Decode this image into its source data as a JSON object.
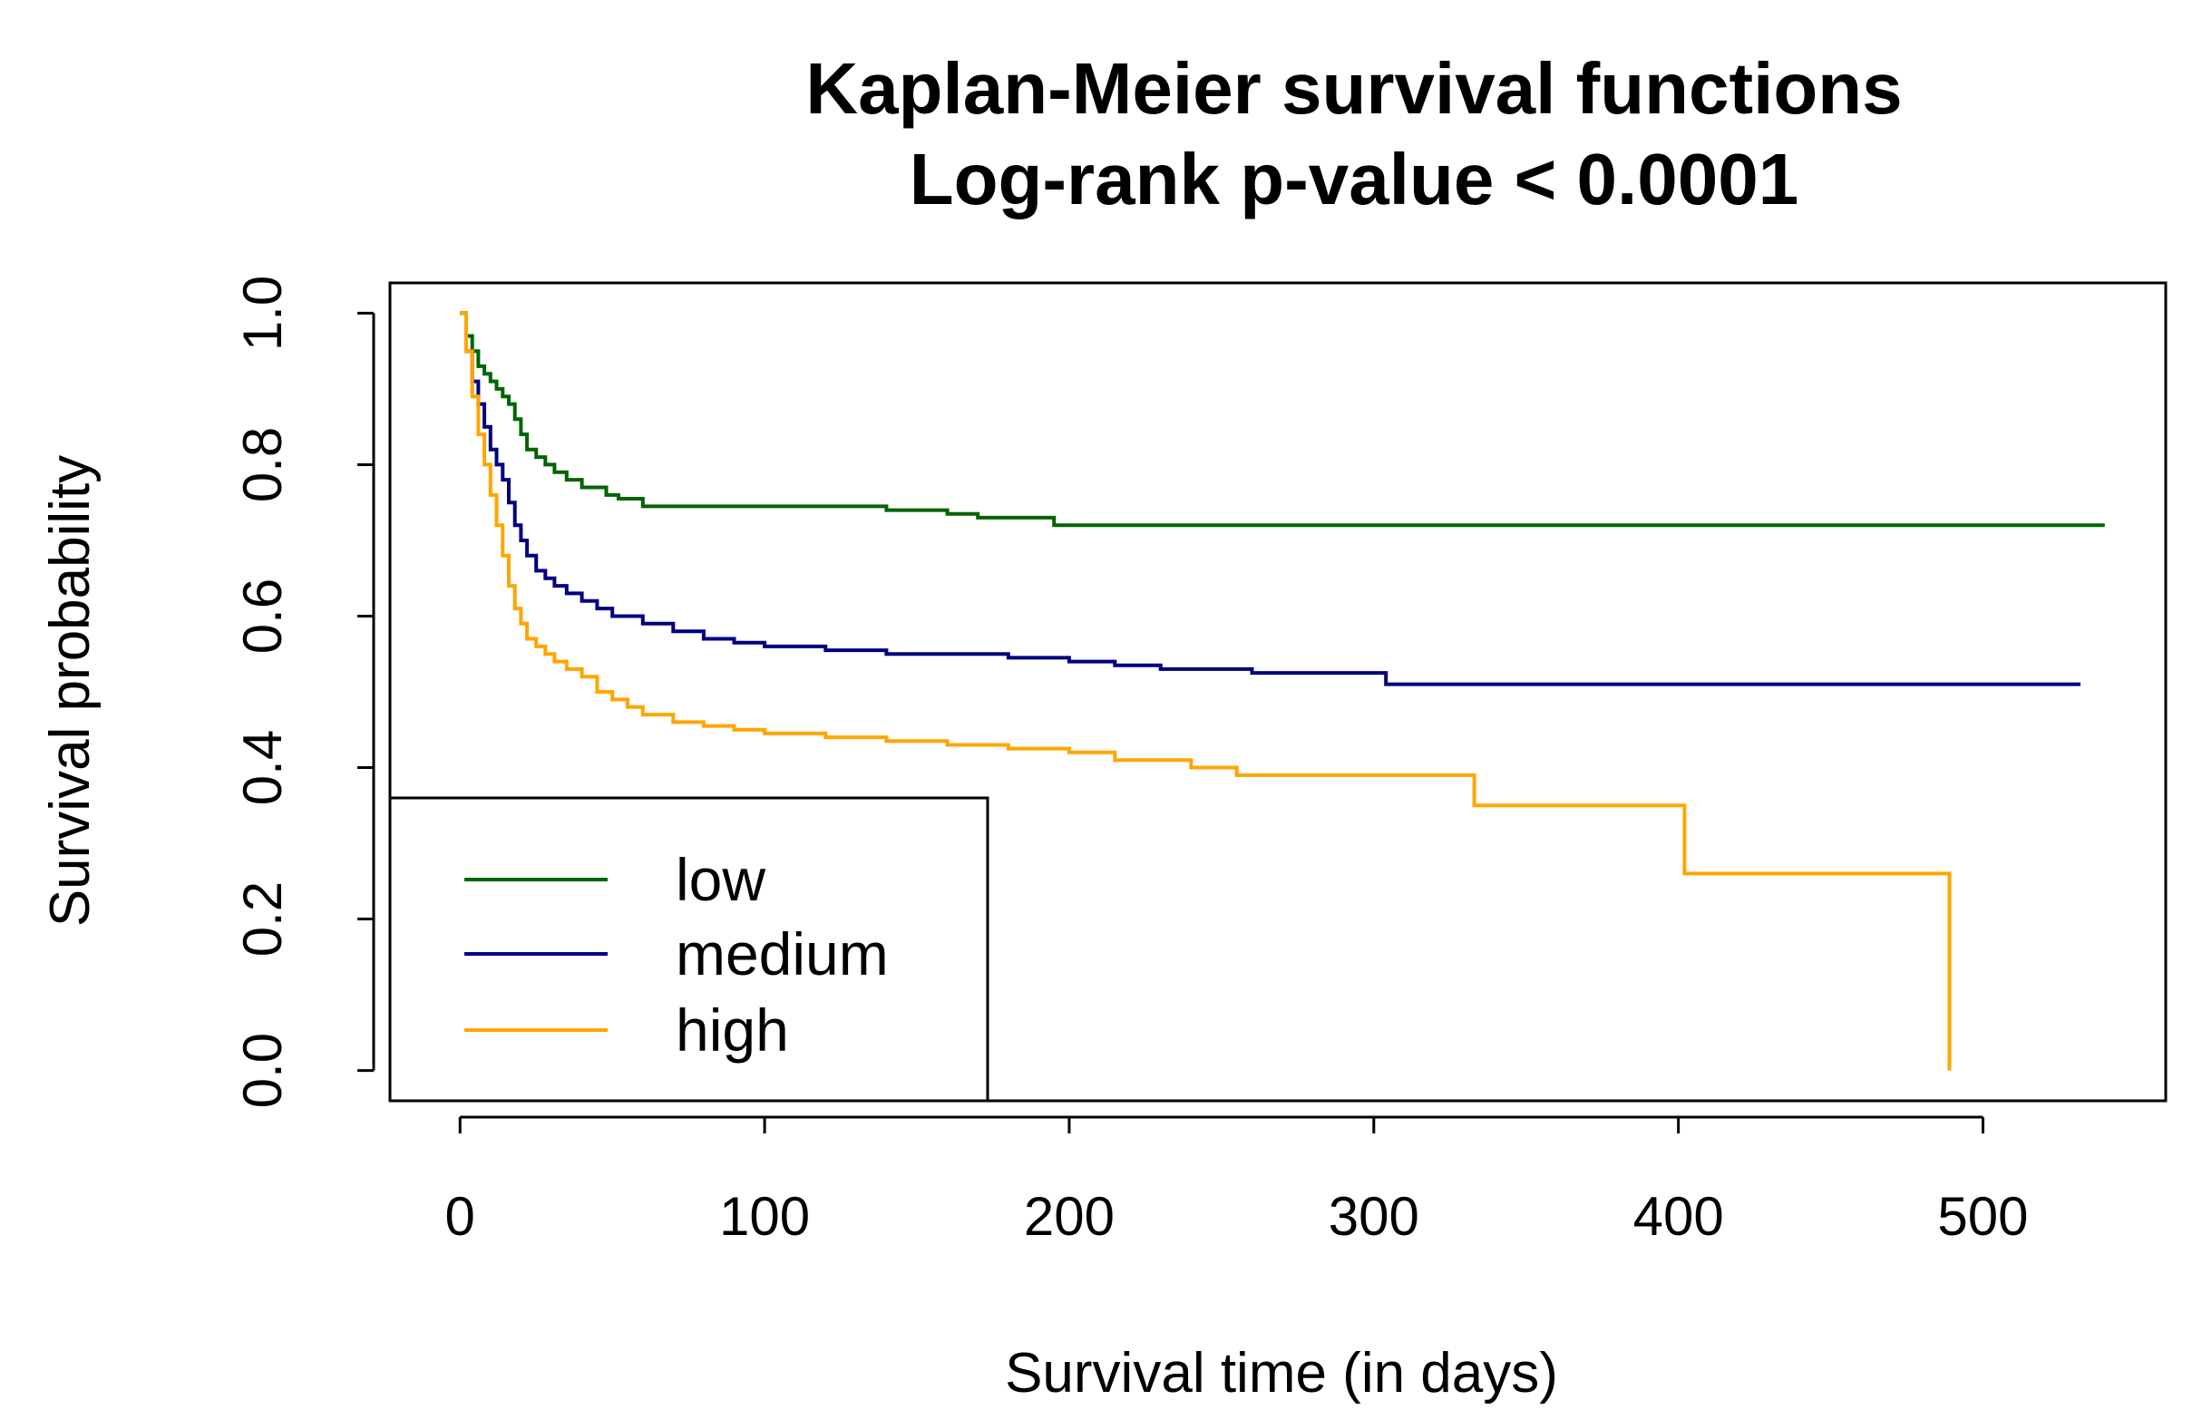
{
  "chart_data": {
    "type": "line",
    "title": [
      "Kaplan-Meier survival functions",
      "Log-rank p-value < 0.0001"
    ],
    "xlabel": "Survival time (in days)",
    "ylabel": "Survival probability",
    "xlim": [
      -23,
      560
    ],
    "ylim": [
      -0.04,
      1.04
    ],
    "xticks": [
      0,
      100,
      200,
      300,
      400,
      500
    ],
    "xtick_labels": [
      "0",
      "100",
      "200",
      "300",
      "400",
      "500"
    ],
    "yticks": [
      0,
      0.2,
      0.4,
      0.6,
      0.8,
      1.0
    ],
    "ytick_labels": [
      "0.0",
      "0.2",
      "0.4",
      "0.6",
      "0.8",
      "1.0"
    ],
    "grid": false,
    "legend_position": "bottom-left",
    "series": [
      {
        "name": "low",
        "color": "#006400",
        "x": [
          0,
          2,
          4,
          6,
          8,
          10,
          12,
          14,
          16,
          18,
          20,
          22,
          25,
          28,
          31,
          35,
          40,
          48,
          52,
          60,
          70,
          80,
          100,
          130,
          140,
          155,
          160,
          170,
          195,
          200,
          250,
          300,
          400,
          500,
          540
        ],
        "y": [
          1.0,
          0.97,
          0.95,
          0.93,
          0.92,
          0.91,
          0.9,
          0.89,
          0.88,
          0.86,
          0.84,
          0.82,
          0.81,
          0.8,
          0.79,
          0.78,
          0.77,
          0.76,
          0.755,
          0.745,
          0.745,
          0.745,
          0.745,
          0.745,
          0.74,
          0.74,
          0.735,
          0.73,
          0.72,
          0.72,
          0.72,
          0.72,
          0.72,
          0.72,
          0.72
        ]
      },
      {
        "name": "medium",
        "color": "#000080",
        "x": [
          0,
          2,
          4,
          6,
          8,
          10,
          12,
          14,
          16,
          18,
          20,
          22,
          25,
          28,
          31,
          35,
          40,
          45,
          50,
          60,
          70,
          80,
          90,
          100,
          120,
          140,
          160,
          180,
          200,
          215,
          230,
          260,
          304,
          400,
          532
        ],
        "y": [
          1.0,
          0.95,
          0.91,
          0.88,
          0.85,
          0.82,
          0.8,
          0.78,
          0.75,
          0.72,
          0.7,
          0.68,
          0.66,
          0.65,
          0.64,
          0.63,
          0.62,
          0.61,
          0.6,
          0.59,
          0.58,
          0.57,
          0.565,
          0.56,
          0.555,
          0.55,
          0.55,
          0.545,
          0.54,
          0.535,
          0.53,
          0.525,
          0.51,
          0.51,
          0.51
        ]
      },
      {
        "name": "high",
        "color": "#FFA500",
        "x": [
          0,
          2,
          4,
          6,
          8,
          10,
          12,
          14,
          16,
          18,
          20,
          22,
          25,
          28,
          31,
          35,
          40,
          45,
          50,
          55,
          60,
          70,
          80,
          90,
          100,
          120,
          140,
          160,
          180,
          200,
          215,
          240,
          255,
          300,
          333,
          402,
          489
        ],
        "y": [
          1.0,
          0.95,
          0.89,
          0.84,
          0.8,
          0.76,
          0.72,
          0.68,
          0.64,
          0.61,
          0.59,
          0.57,
          0.56,
          0.55,
          0.54,
          0.53,
          0.52,
          0.5,
          0.49,
          0.48,
          0.47,
          0.46,
          0.455,
          0.45,
          0.445,
          0.44,
          0.435,
          0.43,
          0.425,
          0.42,
          0.41,
          0.4,
          0.39,
          0.39,
          0.35,
          0.26,
          0.0
        ]
      }
    ]
  }
}
